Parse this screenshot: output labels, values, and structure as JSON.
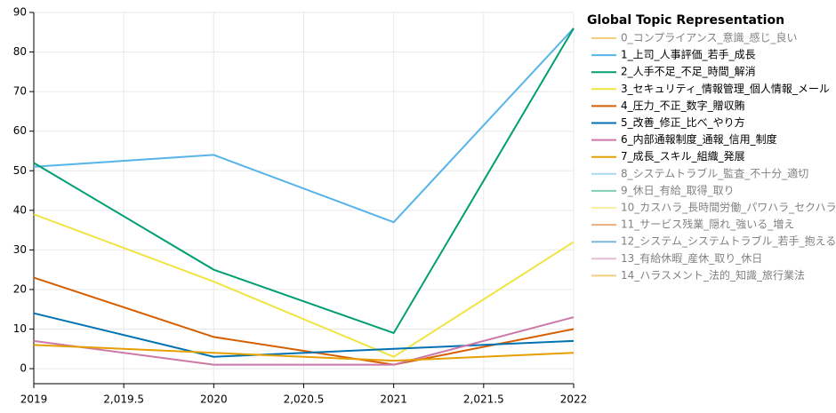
{
  "chart_data": {
    "type": "line",
    "legend_title": "Global Topic Representation",
    "x": [
      2019,
      2020,
      2021,
      2022
    ],
    "xlim": [
      2019,
      2022
    ],
    "xticks": [
      2019,
      {
        "value": 2019.5,
        "label": "2,019.5"
      },
      2020,
      {
        "value": 2020.5,
        "label": "2,020.5"
      },
      2021,
      {
        "value": 2021.5,
        "label": "2,021.5"
      },
      2022
    ],
    "ylim": [
      -3.8,
      90
    ],
    "yticks": [
      0,
      10,
      20,
      30,
      40,
      50,
      60,
      70,
      80,
      90
    ],
    "grid": true,
    "legend": "right",
    "series": [
      {
        "name": "0_コンプライアンス_意識_感じ_良い",
        "color": "#E69F00",
        "visible": false,
        "values": [
          null,
          null,
          null,
          null
        ]
      },
      {
        "name": "1_上司_人事評価_若手_成長",
        "color": "#56B4E9",
        "visible": true,
        "values": [
          51,
          54,
          37,
          86
        ]
      },
      {
        "name": "2_人手不足_不足_時間_解消",
        "color": "#009E73",
        "visible": true,
        "values": [
          52,
          25,
          9,
          86
        ]
      },
      {
        "name": "3_セキュリティ_情報管理_個人情報_メール",
        "color": "#F0E442",
        "visible": true,
        "values": [
          39,
          22,
          3,
          32
        ]
      },
      {
        "name": "4_圧力_不正_数字_贈収賄",
        "color": "#D55E00",
        "visible": true,
        "values": [
          23,
          8,
          1,
          10
        ]
      },
      {
        "name": "5_改善_修正_比べ_やり方",
        "color": "#0072B2",
        "visible": true,
        "values": [
          14,
          3,
          5,
          7
        ]
      },
      {
        "name": "6_内部通報制度_通報_信用_制度",
        "color": "#CC79A7",
        "visible": true,
        "values": [
          7,
          1,
          1,
          13
        ]
      },
      {
        "name": "7_成長_スキル_組織_発展",
        "color": "#E69F00",
        "visible": true,
        "values": [
          6,
          4,
          2,
          4
        ]
      },
      {
        "name": "8_システムトラブル_監査_不十分_適切",
        "color": "#56B4E9",
        "visible": false,
        "values": [
          null,
          null,
          null,
          null
        ]
      },
      {
        "name": "9_休日_有給_取得_取り",
        "color": "#009E73",
        "visible": false,
        "values": [
          null,
          null,
          null,
          null
        ]
      },
      {
        "name": "10_カスハラ_長時間労働_パワハラ_セクハラ",
        "color": "#F0E442",
        "visible": false,
        "values": [
          null,
          null,
          null,
          null
        ]
      },
      {
        "name": "11_サービス残業_隠れ_強いる_増え",
        "color": "#D55E00",
        "visible": false,
        "values": [
          null,
          null,
          null,
          null
        ]
      },
      {
        "name": "12_システム_システムトラブル_若手_抱える",
        "color": "#0072B2",
        "visible": false,
        "values": [
          null,
          null,
          null,
          null
        ]
      },
      {
        "name": "13_有給休暇_産休_取り_休日",
        "color": "#CC79A7",
        "visible": false,
        "values": [
          null,
          null,
          null,
          null
        ]
      },
      {
        "name": "14_ハラスメント_法的_知識_旅行業法",
        "color": "#E69F00",
        "visible": false,
        "values": [
          null,
          null,
          null,
          null
        ]
      }
    ]
  }
}
